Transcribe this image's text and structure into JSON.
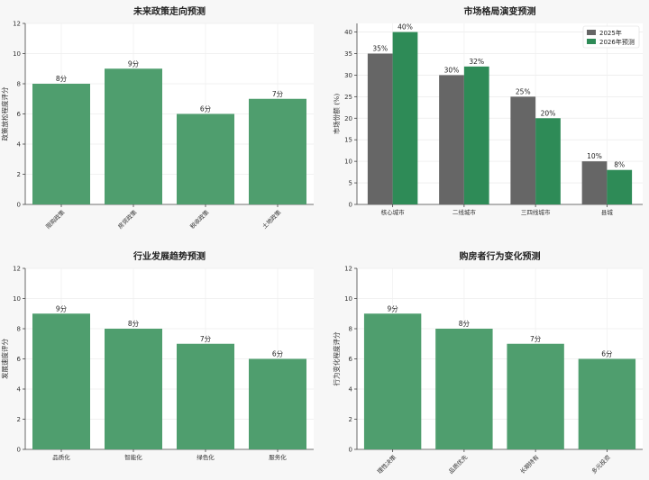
{
  "chart_data": [
    {
      "type": "bar",
      "title": "未来政策走向预测",
      "ylabel": "政策放松程度评分",
      "categories": [
        "限购政策",
        "房贷政策",
        "税收政策",
        "土地政策"
      ],
      "values": [
        8,
        9,
        6,
        7
      ],
      "value_labels": [
        "8分",
        "9分",
        "6分",
        "7分"
      ],
      "ylim": [
        0,
        12
      ],
      "yticks": [
        0,
        2,
        4,
        6,
        8,
        10,
        12
      ],
      "xtick_rotation": 45,
      "grid": true,
      "colors": [
        "#4f9e6e"
      ]
    },
    {
      "type": "bar",
      "title": "市场格局演变预测",
      "ylabel": "市场份额 (%)",
      "categories": [
        "核心城市",
        "二线城市",
        "三四线城市",
        "县城"
      ],
      "series": [
        {
          "name": "2025年",
          "values": [
            35,
            30,
            25,
            10
          ],
          "value_labels": [
            "35%",
            "30%",
            "25%",
            "10%"
          ]
        },
        {
          "name": "2026年预测",
          "values": [
            40,
            32,
            20,
            8
          ],
          "value_labels": [
            "40%",
            "32%",
            "20%",
            "8%"
          ]
        }
      ],
      "ylim": [
        0,
        42
      ],
      "yticks": [
        0,
        5,
        10,
        15,
        20,
        25,
        30,
        35,
        40
      ],
      "xtick_rotation": 0,
      "legend": "top-right",
      "grid": true,
      "colors": [
        "#666666",
        "#2e8b57"
      ]
    },
    {
      "type": "bar",
      "title": "行业发展趋势预测",
      "ylabel": "发展速度评分",
      "categories": [
        "品质化",
        "智能化",
        "绿色化",
        "服务化"
      ],
      "values": [
        9,
        8,
        7,
        6
      ],
      "value_labels": [
        "9分",
        "8分",
        "7分",
        "6分"
      ],
      "ylim": [
        0,
        12
      ],
      "yticks": [
        0,
        2,
        4,
        6,
        8,
        10,
        12
      ],
      "xtick_rotation": 0,
      "grid": true,
      "colors": [
        "#4f9e6e"
      ]
    },
    {
      "type": "bar",
      "title": "购房者行为变化预测",
      "ylabel": "行为变化程度评分",
      "categories": [
        "理性决策",
        "品质优先",
        "长期持有",
        "多元投资"
      ],
      "values": [
        9,
        8,
        7,
        6
      ],
      "value_labels": [
        "9分",
        "8分",
        "7分",
        "6分"
      ],
      "ylim": [
        0,
        12
      ],
      "yticks": [
        0,
        2,
        4,
        6,
        8,
        10,
        12
      ],
      "xtick_rotation": 45,
      "grid": true,
      "colors": [
        "#4f9e6e"
      ]
    }
  ]
}
